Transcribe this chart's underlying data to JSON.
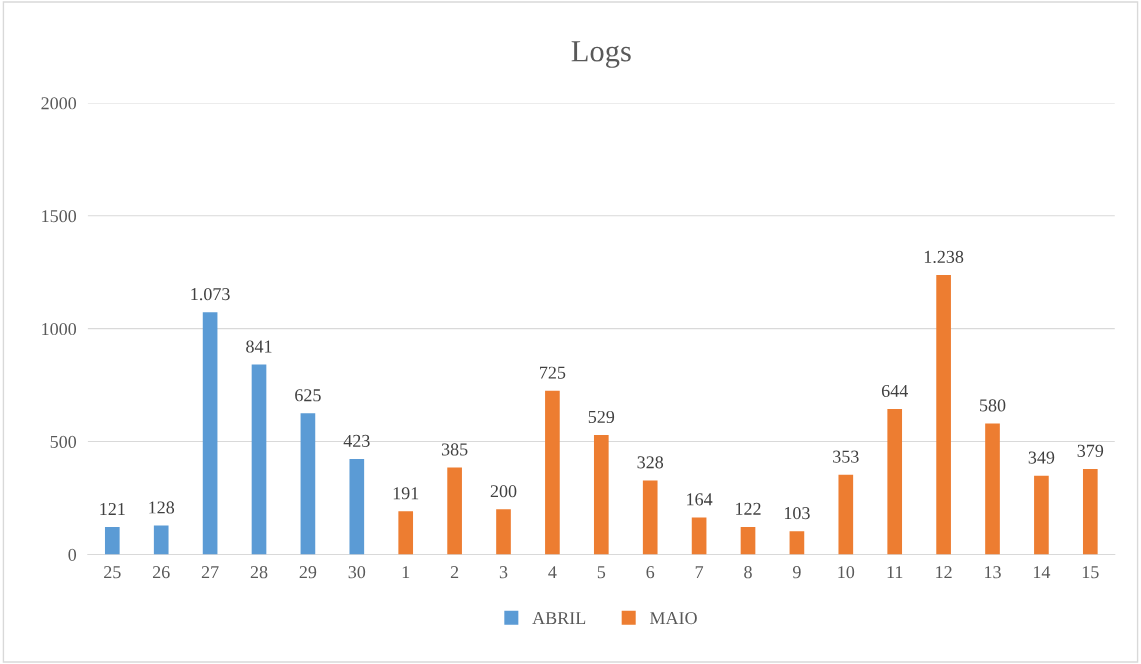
{
  "chart_data": {
    "type": "bar",
    "title": "Logs",
    "categories": [
      "25",
      "26",
      "27",
      "28",
      "29",
      "30",
      "1",
      "2",
      "3",
      "4",
      "5",
      "6",
      "7",
      "8",
      "9",
      "10",
      "11",
      "12",
      "13",
      "14",
      "15"
    ],
    "series": [
      {
        "name": "ABRIL",
        "color": "#5b9bd5",
        "values": [
          121,
          128,
          1073,
          841,
          625,
          423,
          null,
          null,
          null,
          null,
          null,
          null,
          null,
          null,
          null,
          null,
          null,
          null,
          null,
          null,
          null
        ],
        "value_labels": [
          "121",
          "128",
          "1.073",
          "841",
          "625",
          "423",
          null,
          null,
          null,
          null,
          null,
          null,
          null,
          null,
          null,
          null,
          null,
          null,
          null,
          null,
          null
        ]
      },
      {
        "name": "MAIO",
        "color": "#ed7d31",
        "values": [
          null,
          null,
          null,
          null,
          null,
          null,
          191,
          385,
          200,
          725,
          529,
          328,
          164,
          122,
          103,
          353,
          644,
          1238,
          580,
          349,
          379
        ],
        "value_labels": [
          null,
          null,
          null,
          null,
          null,
          null,
          "191",
          "385",
          "200",
          "725",
          "529",
          "328",
          "164",
          "122",
          "103",
          "353",
          "644",
          "1.238",
          "580",
          "349",
          "379"
        ]
      }
    ],
    "ylim": [
      0,
      2000
    ],
    "yticks": [
      0,
      500,
      1000,
      1500,
      2000
    ],
    "grid": "y",
    "legend": "bottom"
  }
}
